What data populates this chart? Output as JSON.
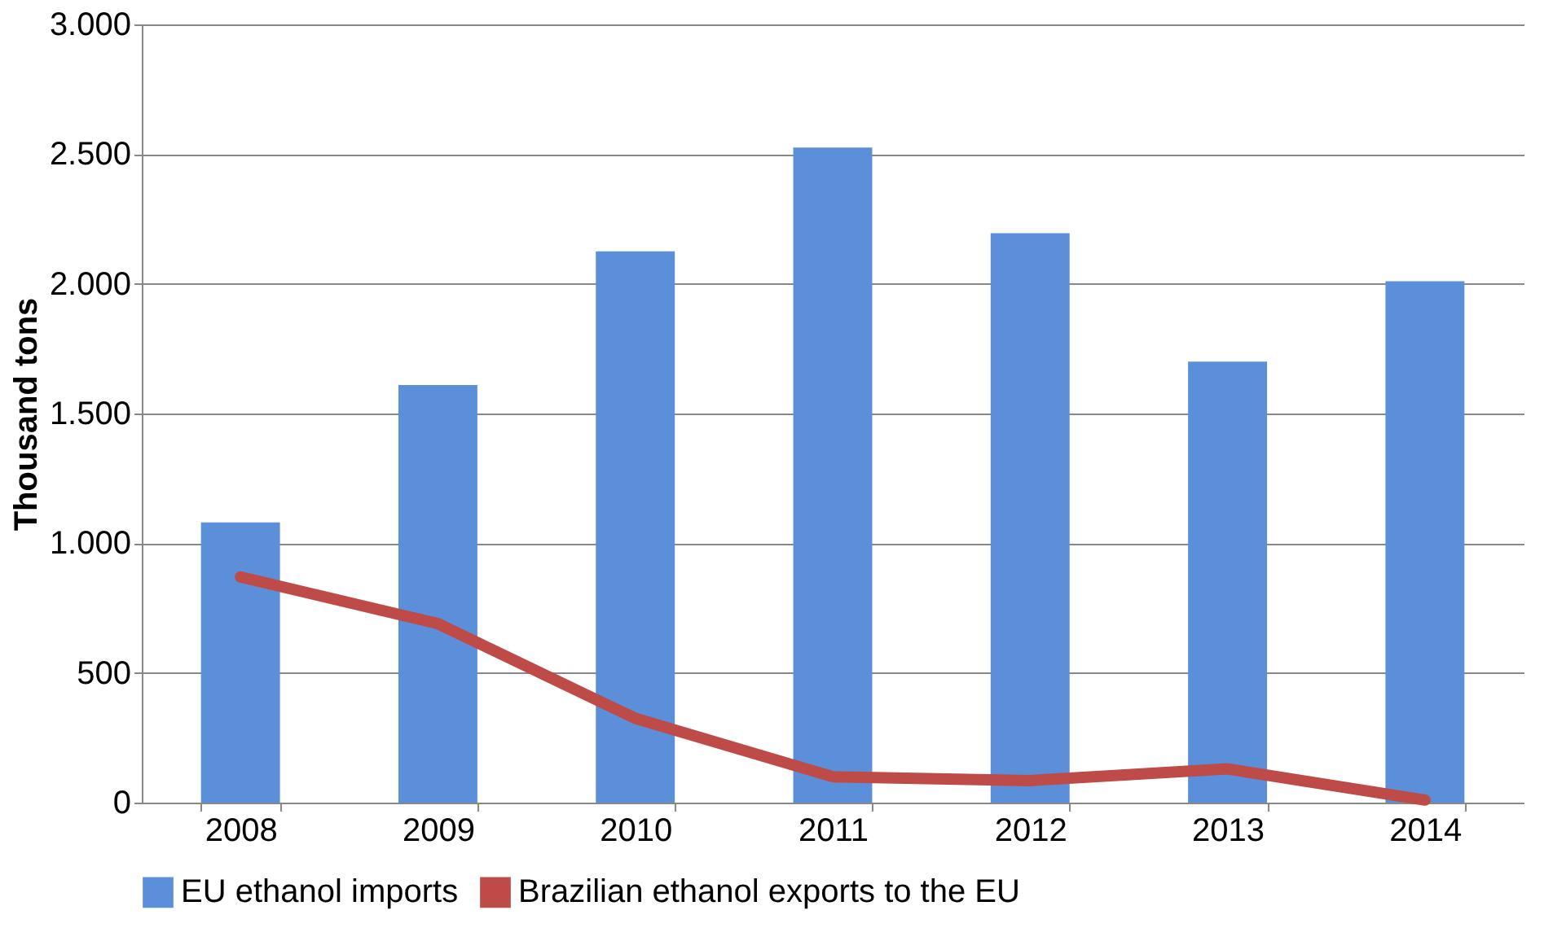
{
  "chart_data": {
    "type": "bar",
    "ylabel": "Thousand tons",
    "categories": [
      "2008",
      "2009",
      "2010",
      "2011",
      "2012",
      "2013",
      "2014"
    ],
    "series": [
      {
        "name": "EU ethanol imports",
        "color": "#5b8fd9",
        "values": [
          1080,
          1610,
          2125,
          2525,
          2195,
          1700,
          2010
        ]
      },
      {
        "name": "Brazilian ethanol exports to the EU",
        "type": "line",
        "color": "#be4b48",
        "values": [
          870,
          690,
          325,
          100,
          85,
          130,
          10
        ]
      }
    ],
    "ylim": [
      0,
      3000
    ],
    "yticks": [
      {
        "value": 0,
        "label": "0"
      },
      {
        "value": 500,
        "label": "500"
      },
      {
        "value": 1000,
        "label": "1.000"
      },
      {
        "value": 1500,
        "label": "1.500"
      },
      {
        "value": 2000,
        "label": "2.000"
      },
      {
        "value": 2500,
        "label": "2.500"
      },
      {
        "value": 3000,
        "label": "3.000"
      }
    ],
    "grid": "y",
    "legend": "bottom",
    "line_style": "solid"
  }
}
